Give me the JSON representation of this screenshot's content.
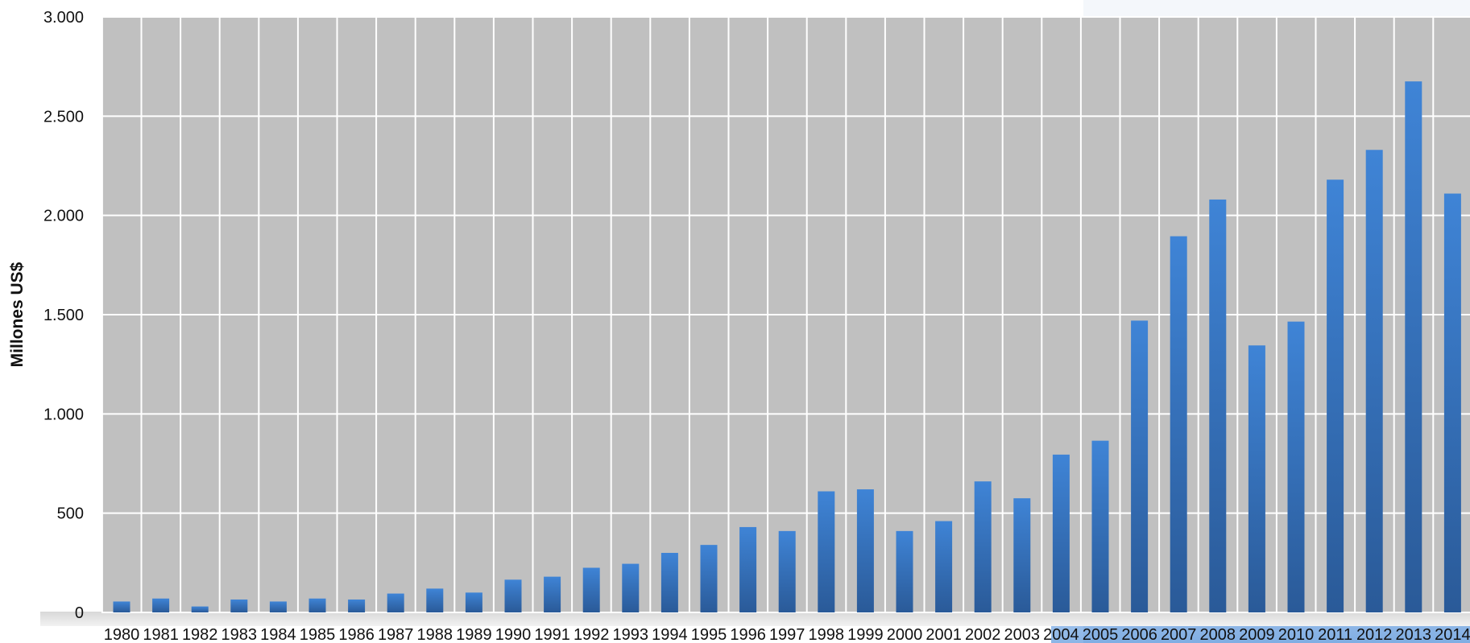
{
  "chart_data": {
    "type": "bar",
    "title": "",
    "xlabel": "",
    "ylabel": "Millones US$",
    "ylim": [
      0,
      3000
    ],
    "yticks": [
      0,
      500,
      1000,
      1500,
      2000,
      2500,
      3000
    ],
    "ytick_labels": [
      "0",
      "500",
      "1.000",
      "1.500",
      "2.000",
      "2.500",
      "3.000"
    ],
    "grid": true,
    "legend": "none",
    "categories": [
      "1980",
      "1981",
      "1982",
      "1983",
      "1984",
      "1985",
      "1986",
      "1987",
      "1988",
      "1989",
      "1990",
      "1991",
      "1992",
      "1993",
      "1994",
      "1995",
      "1996",
      "1997",
      "1998",
      "1999",
      "2000",
      "2001",
      "2002",
      "2003",
      "2004",
      "2005",
      "2006",
      "2007",
      "2008",
      "2009",
      "2010",
      "2011",
      "2012",
      "2013",
      "2014"
    ],
    "values": [
      55,
      70,
      30,
      65,
      55,
      70,
      65,
      95,
      120,
      100,
      165,
      180,
      225,
      245,
      300,
      340,
      430,
      410,
      610,
      620,
      410,
      460,
      660,
      575,
      795,
      865,
      1470,
      1895,
      2080,
      1345,
      1465,
      2180,
      2330,
      2675,
      2110
    ],
    "colors": {
      "plot_bg": "#c0c0c0",
      "grid": "#ffffff",
      "bar_top": "#3f84d6",
      "bar_bottom": "#2a5a98"
    }
  }
}
